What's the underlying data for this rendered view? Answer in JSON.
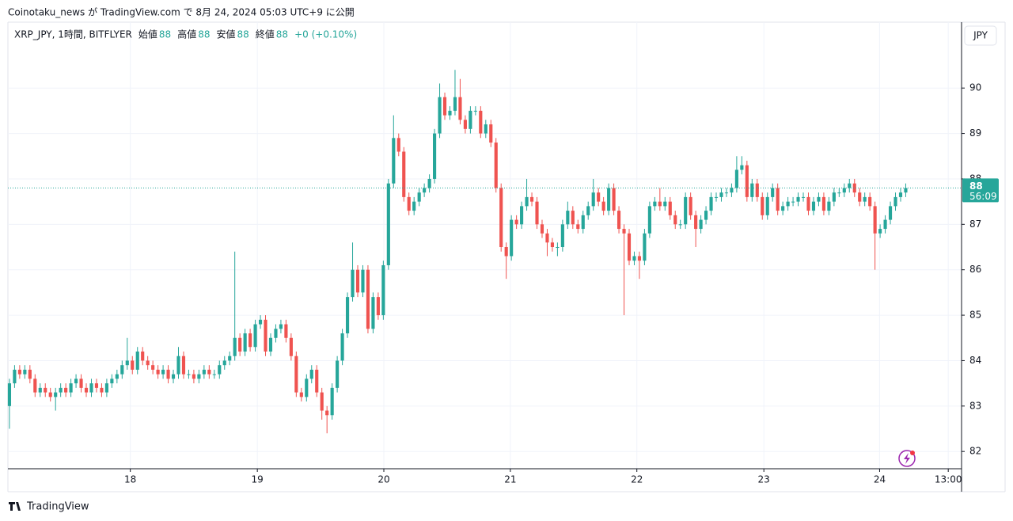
{
  "header": {
    "published": "Coinotaku_news が TradingView.com で 8月 24, 2024 05:03 UTC+9 に公開"
  },
  "toolbar": {
    "currency": "JPY"
  },
  "footer": {
    "brand": "TradingView"
  },
  "chart_data": {
    "type": "candlestick",
    "legend": {
      "symbol": "XRP_JPY, 1時間, BITFLYER",
      "fields": [
        {
          "label": "始値",
          "value": 88
        },
        {
          "label": "高値",
          "value": 88
        },
        {
          "label": "安値",
          "value": 88
        },
        {
          "label": "終値",
          "value": 88
        }
      ],
      "change": "+0 (+0.10%)"
    },
    "up_color": "#26a69a",
    "down_color": "#ef5350",
    "open": [
      83.0,
      83.5,
      83.8,
      83.7,
      83.8,
      83.6,
      83.3,
      83.4,
      83.3,
      83.2,
      83.3,
      83.4,
      83.3,
      83.5,
      83.6,
      83.4,
      83.3,
      83.5,
      83.4,
      83.3,
      83.5,
      83.6,
      83.7,
      83.9,
      84.0,
      83.8,
      84.2,
      84.0,
      83.9,
      83.8,
      83.7,
      83.8,
      83.6,
      83.7,
      84.1,
      83.7,
      83.7,
      83.6,
      83.7,
      83.8,
      83.7,
      83.7,
      83.9,
      84.0,
      84.1,
      84.5,
      84.2,
      84.6,
      84.3,
      84.8,
      84.9,
      84.2,
      84.5,
      84.7,
      84.8,
      84.5,
      84.1,
      83.3,
      83.2,
      83.6,
      83.8,
      83.3,
      82.9,
      82.8,
      83.4,
      84.0,
      84.6,
      85.4,
      86.0,
      85.5,
      86.0,
      84.7,
      85.4,
      85.0,
      86.1,
      87.9,
      88.9,
      88.6,
      87.6,
      87.3,
      87.5,
      87.7,
      87.8,
      88.0,
      89.0,
      89.8,
      89.4,
      89.5,
      89.8,
      89.3,
      89.1,
      89.5,
      89.5,
      89.0,
      89.2,
      88.8,
      87.8,
      86.5,
      86.3,
      87.1,
      87.0,
      87.4,
      87.6,
      87.5,
      87.0,
      86.8,
      86.6,
      86.5,
      86.5,
      87.0,
      87.3,
      87.0,
      86.9,
      87.2,
      87.4,
      87.7,
      87.5,
      87.3,
      87.8,
      87.3,
      86.9,
      86.8,
      86.2,
      86.3,
      86.2,
      86.8,
      87.4,
      87.5,
      87.4,
      87.5,
      87.2,
      87.0,
      87.0,
      87.6,
      87.2,
      86.9,
      87.1,
      87.3,
      87.6,
      87.6,
      87.7,
      87.7,
      87.8,
      88.2,
      88.3,
      87.6,
      87.9,
      87.6,
      87.2,
      87.6,
      87.8,
      87.3,
      87.4,
      87.5,
      87.5,
      87.6,
      87.6,
      87.3,
      87.5,
      87.6,
      87.3,
      87.5,
      87.7,
      87.7,
      87.8,
      87.9,
      87.7,
      87.5,
      87.6,
      87.4,
      86.8,
      86.9,
      87.1,
      87.4,
      87.6,
      87.7
    ],
    "high": [
      83.6,
      83.9,
      83.9,
      83.9,
      83.9,
      83.7,
      83.5,
      83.5,
      83.4,
      83.4,
      83.5,
      83.5,
      83.6,
      83.7,
      83.7,
      83.5,
      83.6,
      83.6,
      83.5,
      83.6,
      83.7,
      83.8,
      84.0,
      84.5,
      84.1,
      84.3,
      84.3,
      84.1,
      84.0,
      83.9,
      83.9,
      83.9,
      83.8,
      84.3,
      84.2,
      83.8,
      83.8,
      83.8,
      83.9,
      83.9,
      83.8,
      84.0,
      84.1,
      84.2,
      86.4,
      84.6,
      84.7,
      84.7,
      84.9,
      85.0,
      85.0,
      84.6,
      84.8,
      84.9,
      84.9,
      84.6,
      84.2,
      83.4,
      83.7,
      83.9,
      83.9,
      83.4,
      83.0,
      83.5,
      84.1,
      84.7,
      85.5,
      86.6,
      86.1,
      86.1,
      86.1,
      85.5,
      85.5,
      86.2,
      88.0,
      89.4,
      89.0,
      88.7,
      87.7,
      87.6,
      87.8,
      87.9,
      88.1,
      89.1,
      90.1,
      89.9,
      89.6,
      90.4,
      90.2,
      89.4,
      89.6,
      89.6,
      89.6,
      89.3,
      89.3,
      88.9,
      87.9,
      86.6,
      87.2,
      87.2,
      87.5,
      88.0,
      87.7,
      87.6,
      87.1,
      86.9,
      86.7,
      86.6,
      87.1,
      87.5,
      87.4,
      87.1,
      87.3,
      87.5,
      88.0,
      87.8,
      87.6,
      87.9,
      87.9,
      87.4,
      87.0,
      86.9,
      86.4,
      86.4,
      86.9,
      87.5,
      87.6,
      87.8,
      87.6,
      87.6,
      87.3,
      87.1,
      87.7,
      87.7,
      87.3,
      87.2,
      87.4,
      87.7,
      87.7,
      87.8,
      87.8,
      87.9,
      88.5,
      88.5,
      88.4,
      88.0,
      88.0,
      87.7,
      87.7,
      87.9,
      87.9,
      87.5,
      87.6,
      87.6,
      87.7,
      87.7,
      87.7,
      87.6,
      87.7,
      87.7,
      87.6,
      87.8,
      87.8,
      87.9,
      88.0,
      88.0,
      87.8,
      87.7,
      87.7,
      87.5,
      87.0,
      87.2,
      87.5,
      87.7,
      87.8,
      87.9
    ],
    "low": [
      82.5,
      83.4,
      83.6,
      83.6,
      83.5,
      83.2,
      83.2,
      83.2,
      83.1,
      82.9,
      83.2,
      83.2,
      83.2,
      83.4,
      83.3,
      83.2,
      83.2,
      83.3,
      83.2,
      83.2,
      83.4,
      83.5,
      83.6,
      83.8,
      83.7,
      83.7,
      83.9,
      83.8,
      83.7,
      83.6,
      83.6,
      83.5,
      83.5,
      83.6,
      83.6,
      83.6,
      83.5,
      83.5,
      83.6,
      83.6,
      83.6,
      83.6,
      83.8,
      83.9,
      84.0,
      84.1,
      84.1,
      84.2,
      84.2,
      84.7,
      84.1,
      84.1,
      84.4,
      84.6,
      84.4,
      84.0,
      83.2,
      83.1,
      83.1,
      83.5,
      83.2,
      82.7,
      82.4,
      82.7,
      83.3,
      83.9,
      84.5,
      85.3,
      85.4,
      85.4,
      84.6,
      84.6,
      84.9,
      84.9,
      86.0,
      87.8,
      88.5,
      87.5,
      87.2,
      87.2,
      87.4,
      87.6,
      87.7,
      87.9,
      88.9,
      89.3,
      89.3,
      89.4,
      89.2,
      89.0,
      89.0,
      89.4,
      88.9,
      88.9,
      88.7,
      87.7,
      86.4,
      85.8,
      86.2,
      86.9,
      86.9,
      87.3,
      87.4,
      86.9,
      86.7,
      86.3,
      86.4,
      86.3,
      86.4,
      86.9,
      86.9,
      86.8,
      86.8,
      87.1,
      87.3,
      87.4,
      87.2,
      87.2,
      87.2,
      86.8,
      85.0,
      86.1,
      86.1,
      85.8,
      86.1,
      86.7,
      87.3,
      87.3,
      87.3,
      87.1,
      86.9,
      86.9,
      86.9,
      87.1,
      86.5,
      86.8,
      87.0,
      87.2,
      87.5,
      87.5,
      87.6,
      87.6,
      87.7,
      88.1,
      87.5,
      87.5,
      87.5,
      87.1,
      87.1,
      87.5,
      87.2,
      87.2,
      87.3,
      87.4,
      87.4,
      87.5,
      87.2,
      87.2,
      87.4,
      87.2,
      87.2,
      87.4,
      87.6,
      87.6,
      87.7,
      87.6,
      87.4,
      87.4,
      87.3,
      86.0,
      86.7,
      86.8,
      87.0,
      87.3,
      87.5,
      87.6
    ],
    "close": [
      83.5,
      83.8,
      83.7,
      83.8,
      83.6,
      83.3,
      83.4,
      83.3,
      83.2,
      83.3,
      83.4,
      83.3,
      83.5,
      83.6,
      83.4,
      83.3,
      83.5,
      83.4,
      83.3,
      83.5,
      83.6,
      83.7,
      83.9,
      84.0,
      83.8,
      84.2,
      84.0,
      83.9,
      83.8,
      83.7,
      83.8,
      83.6,
      83.7,
      84.1,
      83.7,
      83.7,
      83.6,
      83.7,
      83.8,
      83.7,
      83.7,
      83.9,
      84.0,
      84.1,
      84.5,
      84.2,
      84.6,
      84.3,
      84.8,
      84.9,
      84.2,
      84.5,
      84.7,
      84.8,
      84.5,
      84.1,
      83.3,
      83.2,
      83.6,
      83.8,
      83.3,
      82.9,
      82.8,
      83.4,
      84.0,
      84.6,
      85.4,
      86.0,
      85.5,
      86.0,
      84.7,
      85.4,
      85.0,
      86.1,
      87.9,
      88.9,
      88.6,
      87.6,
      87.3,
      87.5,
      87.7,
      87.8,
      88.0,
      89.0,
      89.8,
      89.4,
      89.5,
      89.8,
      89.3,
      89.1,
      89.5,
      89.5,
      89.0,
      89.2,
      88.8,
      87.8,
      86.5,
      86.3,
      87.1,
      87.0,
      87.4,
      87.6,
      87.5,
      87.0,
      86.8,
      86.6,
      86.5,
      86.5,
      87.0,
      87.3,
      87.0,
      86.9,
      87.2,
      87.4,
      87.7,
      87.5,
      87.3,
      87.8,
      87.3,
      86.9,
      86.8,
      86.2,
      86.3,
      86.2,
      86.8,
      87.4,
      87.5,
      87.4,
      87.5,
      87.2,
      87.0,
      87.0,
      87.6,
      87.2,
      86.9,
      87.1,
      87.3,
      87.6,
      87.6,
      87.7,
      87.7,
      87.8,
      88.2,
      88.3,
      87.6,
      87.9,
      87.6,
      87.2,
      87.6,
      87.8,
      87.3,
      87.4,
      87.5,
      87.5,
      87.6,
      87.6,
      87.3,
      87.5,
      87.6,
      87.3,
      87.5,
      87.7,
      87.7,
      87.8,
      87.9,
      87.7,
      87.5,
      87.6,
      87.4,
      86.8,
      86.9,
      87.1,
      87.4,
      87.6,
      87.7,
      87.8
    ],
    "last_price": {
      "value": 88,
      "countdown": "56:09"
    },
    "xlim": [
      -0.3,
      185.9
    ],
    "xticks": [
      {
        "value": 23.6,
        "label": "18"
      },
      {
        "value": 48.4,
        "label": "19"
      },
      {
        "value": 73.1,
        "label": "20"
      },
      {
        "value": 97.8,
        "label": "21"
      },
      {
        "value": 122.5,
        "label": "22"
      },
      {
        "value": 147.3,
        "label": "23"
      },
      {
        "value": 169.9,
        "label": "24"
      },
      {
        "value": 183.3,
        "label": "13:00"
      }
    ],
    "ylim": [
      81.62,
      91.45
    ],
    "yticks": [
      82,
      83,
      84,
      85,
      86,
      87,
      88,
      89,
      90
    ],
    "grid": true
  }
}
